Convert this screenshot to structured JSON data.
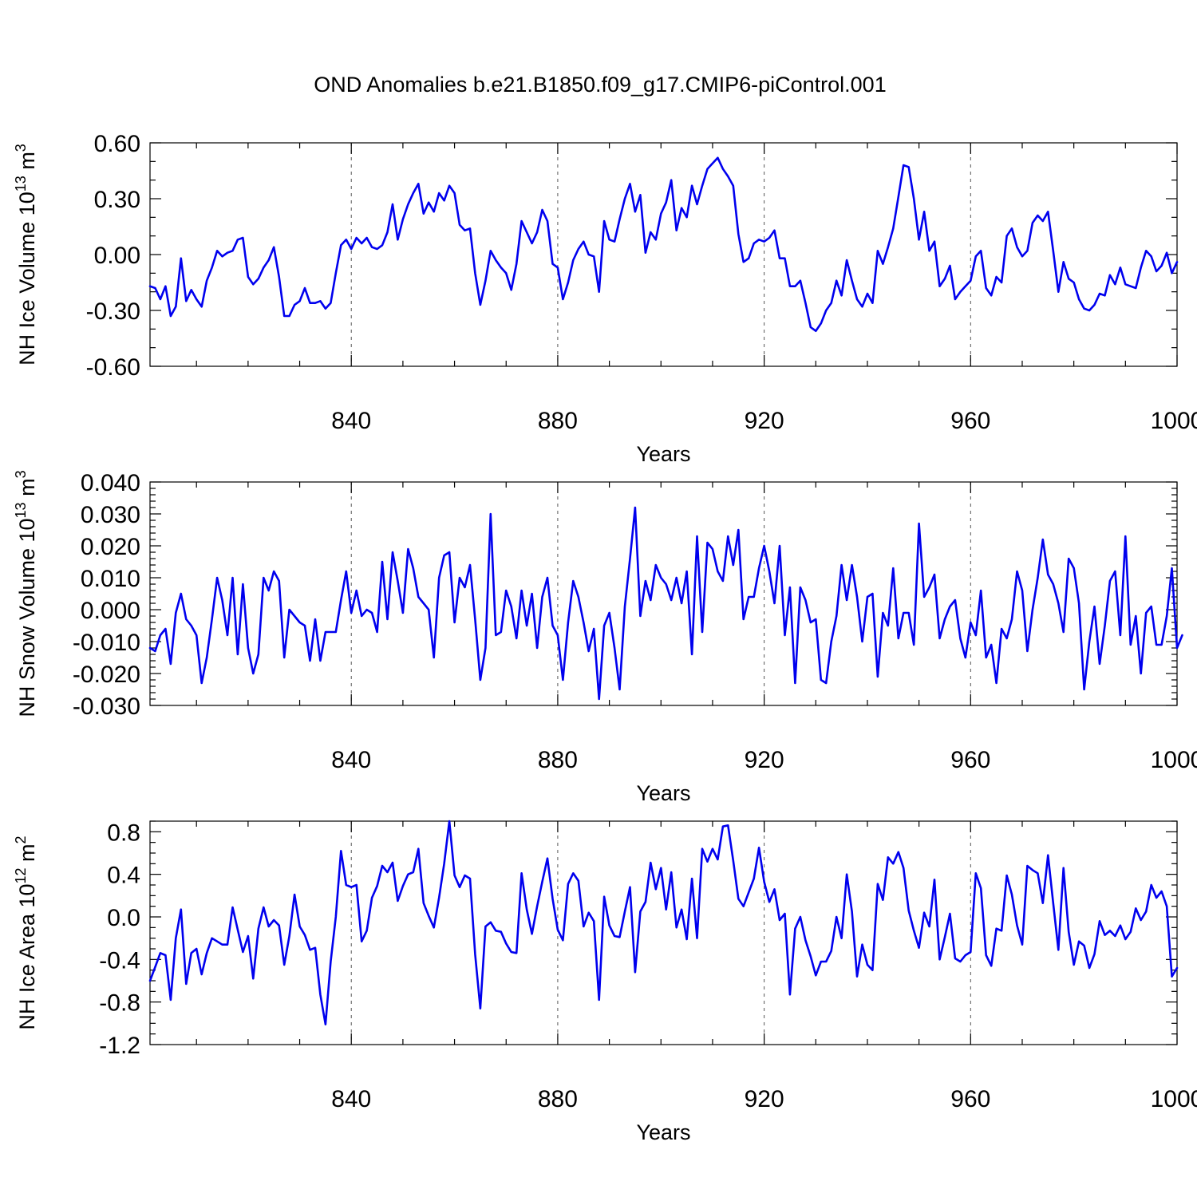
{
  "title": "OND Anomalies b.e21.B1850.f09_g17.CMIP6-piControl.001",
  "colors": {
    "line": "#0000ee",
    "axis": "#000000",
    "refline": "#555555"
  },
  "chart_data": [
    {
      "type": "line",
      "ylabel": "NH Ice Volume 10",
      "ylabel_exp": "13",
      "ylabel_unit": " m",
      "ylabel_unit_exp": "3",
      "xlabel": "Years",
      "xlim": [
        801,
        1000
      ],
      "ylim": [
        -0.6,
        0.6
      ],
      "yticks": [
        "0.60",
        "0.30",
        "0.00",
        "-0.30",
        "-0.60"
      ],
      "ytick_values": [
        0.6,
        0.3,
        0.0,
        -0.3,
        -0.6
      ],
      "xticks": [
        "840",
        "880",
        "920",
        "960",
        "1000"
      ],
      "xtick_values": [
        840,
        880,
        920,
        960,
        1000
      ],
      "x_start": 801,
      "values": [
        -0.17,
        -0.18,
        -0.24,
        -0.17,
        -0.33,
        -0.28,
        -0.02,
        -0.25,
        -0.19,
        -0.24,
        -0.28,
        -0.14,
        -0.07,
        0.02,
        -0.01,
        0.01,
        0.02,
        0.08,
        0.09,
        -0.12,
        -0.16,
        -0.13,
        -0.07,
        -0.03,
        0.04,
        -0.12,
        -0.33,
        -0.33,
        -0.27,
        -0.25,
        -0.18,
        -0.26,
        -0.26,
        -0.25,
        -0.29,
        -0.26,
        -0.1,
        0.05,
        0.08,
        0.03,
        0.09,
        0.06,
        0.09,
        0.04,
        0.03,
        0.05,
        0.12,
        0.27,
        0.08,
        0.19,
        0.27,
        0.33,
        0.38,
        0.22,
        0.28,
        0.23,
        0.33,
        0.29,
        0.37,
        0.33,
        0.16,
        0.13,
        0.14,
        -0.1,
        -0.27,
        -0.14,
        0.02,
        -0.03,
        -0.07,
        -0.1,
        -0.19,
        -0.05,
        0.18,
        0.12,
        0.06,
        0.12,
        0.24,
        0.18,
        -0.05,
        -0.07,
        -0.24,
        -0.15,
        -0.03,
        0.03,
        0.07,
        0.0,
        -0.01,
        -0.2,
        0.18,
        0.08,
        0.07,
        0.19,
        0.3,
        0.38,
        0.23,
        0.32,
        0.01,
        0.12,
        0.08,
        0.22,
        0.28,
        0.4,
        0.13,
        0.25,
        0.2,
        0.37,
        0.27,
        0.37,
        0.46,
        0.49,
        0.52,
        0.46,
        0.42,
        0.37,
        0.11,
        -0.04,
        -0.02,
        0.06,
        0.08,
        0.07,
        0.09,
        0.13,
        -0.02,
        -0.02,
        -0.17,
        -0.17,
        -0.14,
        -0.26,
        -0.39,
        -0.41,
        -0.37,
        -0.3,
        -0.26,
        -0.14,
        -0.22,
        -0.03,
        -0.14,
        -0.24,
        -0.28,
        -0.21,
        -0.26,
        0.02,
        -0.05,
        0.04,
        0.14,
        0.31,
        0.48,
        0.47,
        0.3,
        0.08,
        0.23,
        0.02,
        0.07,
        -0.17,
        -0.13,
        -0.06,
        -0.24,
        -0.2,
        -0.17,
        -0.14,
        -0.01,
        0.02,
        -0.18,
        -0.22,
        -0.12,
        -0.15,
        0.1,
        0.14,
        0.04,
        -0.01,
        0.02,
        0.17,
        0.21,
        0.18,
        0.23,
        0.02,
        -0.2,
        -0.04,
        -0.13,
        -0.15,
        -0.24,
        -0.29,
        -0.3,
        -0.27,
        -0.21,
        -0.22,
        -0.11,
        -0.16,
        -0.07,
        -0.16,
        -0.17,
        -0.18,
        -0.07,
        0.02,
        -0.01,
        -0.09,
        -0.06,
        0.01,
        -0.1,
        -0.04
      ]
    },
    {
      "type": "line",
      "ylabel": "NH Snow Volume 10",
      "ylabel_exp": "13",
      "ylabel_unit": " m",
      "ylabel_unit_exp": "3",
      "xlabel": "Years",
      "xlim": [
        801,
        1000
      ],
      "ylim": [
        -0.03,
        0.04
      ],
      "yticks": [
        "0.040",
        "0.030",
        "0.020",
        "0.010",
        "0.000",
        "-0.010",
        "-0.020",
        "-0.030"
      ],
      "ytick_values": [
        0.04,
        0.03,
        0.02,
        0.01,
        0.0,
        -0.01,
        -0.02,
        -0.03
      ],
      "xticks": [
        "840",
        "880",
        "920",
        "960",
        "1000"
      ],
      "xtick_values": [
        840,
        880,
        920,
        960,
        1000
      ],
      "x_start": 801,
      "values": [
        -0.012,
        -0.013,
        -0.008,
        -0.006,
        -0.017,
        -0.001,
        0.005,
        -0.003,
        -0.005,
        -0.008,
        -0.023,
        -0.015,
        -0.003,
        0.01,
        0.003,
        -0.008,
        0.01,
        -0.014,
        0.008,
        -0.012,
        -0.02,
        -0.014,
        0.01,
        0.006,
        0.012,
        0.009,
        -0.015,
        0.0,
        -0.002,
        -0.004,
        -0.005,
        -0.016,
        -0.003,
        -0.016,
        -0.007,
        -0.007,
        -0.007,
        0.003,
        0.012,
        -0.001,
        0.006,
        -0.002,
        0.0,
        -0.001,
        -0.007,
        0.015,
        -0.003,
        0.018,
        0.009,
        -0.001,
        0.019,
        0.013,
        0.004,
        0.002,
        0.0,
        -0.015,
        0.01,
        0.017,
        0.018,
        -0.004,
        0.01,
        0.007,
        0.014,
        -0.003,
        -0.022,
        -0.012,
        0.03,
        -0.008,
        -0.007,
        0.006,
        0.001,
        -0.009,
        0.006,
        -0.005,
        0.005,
        -0.012,
        0.004,
        0.01,
        -0.005,
        -0.008,
        -0.022,
        -0.004,
        0.009,
        0.004,
        -0.004,
        -0.013,
        -0.006,
        -0.028,
        -0.005,
        -0.001,
        -0.012,
        -0.025,
        0.001,
        0.016,
        0.032,
        -0.002,
        0.009,
        0.003,
        0.014,
        0.01,
        0.008,
        0.003,
        0.01,
        0.002,
        0.012,
        -0.014,
        0.023,
        -0.007,
        0.021,
        0.019,
        0.012,
        0.009,
        0.023,
        0.014,
        0.025,
        -0.003,
        0.004,
        0.004,
        0.013,
        0.02,
        0.012,
        0.002,
        0.02,
        -0.008,
        0.007,
        -0.023,
        0.007,
        0.003,
        -0.004,
        -0.003,
        -0.022,
        -0.023,
        -0.01,
        -0.002,
        0.014,
        0.003,
        0.014,
        0.004,
        -0.01,
        0.004,
        0.005,
        -0.021,
        -0.001,
        -0.005,
        0.013,
        -0.009,
        -0.001,
        -0.001,
        -0.011,
        0.027,
        0.004,
        0.007,
        0.011,
        -0.009,
        -0.003,
        0.001,
        0.003,
        -0.009,
        -0.015,
        -0.004,
        -0.008,
        0.006,
        -0.015,
        -0.011,
        -0.023,
        -0.006,
        -0.009,
        -0.003,
        0.012,
        0.006,
        -0.013,
        0.0,
        0.01,
        0.022,
        0.011,
        0.008,
        0.002,
        -0.007,
        0.016,
        0.013,
        0.002,
        -0.025,
        -0.01,
        0.001,
        -0.017,
        -0.005,
        0.009,
        0.012,
        -0.008,
        0.023,
        -0.011,
        -0.002,
        -0.02,
        -0.001,
        0.001,
        -0.011,
        -0.011,
        -0.002,
        0.013,
        -0.012,
        -0.008
      ]
    },
    {
      "type": "line",
      "ylabel": "NH Ice Area 10",
      "ylabel_exp": "12",
      "ylabel_unit": " m",
      "ylabel_unit_exp": "2",
      "xlabel": "Years",
      "xlim": [
        801,
        1000
      ],
      "ylim": [
        -1.2,
        0.9
      ],
      "yticks": [
        "0.8",
        "0.4",
        "0.0",
        "-0.4",
        "-0.8",
        "-1.2"
      ],
      "ytick_values": [
        0.8,
        0.4,
        0.0,
        -0.4,
        -0.8,
        -1.2
      ],
      "xticks": [
        "840",
        "880",
        "920",
        "960",
        "1000"
      ],
      "xtick_values": [
        840,
        880,
        920,
        960,
        1000
      ],
      "x_start": 801,
      "values": [
        -0.6,
        -0.47,
        -0.34,
        -0.36,
        -0.78,
        -0.2,
        0.07,
        -0.63,
        -0.34,
        -0.3,
        -0.54,
        -0.34,
        -0.2,
        -0.23,
        -0.26,
        -0.26,
        0.09,
        -0.12,
        -0.33,
        -0.18,
        -0.58,
        -0.11,
        0.09,
        -0.09,
        -0.03,
        -0.08,
        -0.45,
        -0.18,
        0.21,
        -0.09,
        -0.17,
        -0.31,
        -0.29,
        -0.73,
        -1.01,
        -0.42,
        0.0,
        0.62,
        0.3,
        0.28,
        0.3,
        -0.23,
        -0.13,
        0.18,
        0.29,
        0.48,
        0.42,
        0.51,
        0.15,
        0.29,
        0.4,
        0.42,
        0.64,
        0.13,
        0.01,
        -0.1,
        0.18,
        0.5,
        0.9,
        0.39,
        0.28,
        0.39,
        0.36,
        -0.35,
        -0.86,
        -0.09,
        -0.05,
        -0.13,
        -0.14,
        -0.25,
        -0.33,
        -0.34,
        0.41,
        0.07,
        -0.16,
        0.1,
        0.33,
        0.55,
        0.17,
        -0.12,
        -0.22,
        0.31,
        0.41,
        0.34,
        -0.09,
        0.04,
        -0.04,
        -0.78,
        0.19,
        -0.08,
        -0.18,
        -0.19,
        0.05,
        0.28,
        -0.52,
        0.05,
        0.14,
        0.51,
        0.26,
        0.46,
        0.07,
        0.42,
        -0.1,
        0.07,
        -0.21,
        0.36,
        -0.2,
        0.64,
        0.52,
        0.64,
        0.54,
        0.85,
        0.86,
        0.53,
        0.17,
        0.1,
        0.23,
        0.36,
        0.65,
        0.33,
        0.14,
        0.26,
        -0.03,
        0.03,
        -0.73,
        -0.11,
        0.0,
        -0.22,
        -0.37,
        -0.55,
        -0.42,
        -0.42,
        -0.32,
        0.0,
        -0.2,
        0.4,
        0.05,
        -0.56,
        -0.26,
        -0.45,
        -0.5,
        0.31,
        0.16,
        0.56,
        0.5,
        0.61,
        0.46,
        0.06,
        -0.13,
        -0.29,
        0.04,
        -0.09,
        0.35,
        -0.4,
        -0.19,
        0.03,
        -0.39,
        -0.42,
        -0.36,
        -0.33,
        0.41,
        0.27,
        -0.36,
        -0.46,
        -0.11,
        -0.13,
        0.39,
        0.21,
        -0.08,
        -0.26,
        0.48,
        0.44,
        0.41,
        0.13,
        0.58,
        0.13,
        -0.31,
        0.46,
        -0.14,
        -0.45,
        -0.23,
        -0.27,
        -0.48,
        -0.35,
        -0.04,
        -0.17,
        -0.13,
        -0.18,
        -0.08,
        -0.21,
        -0.14,
        0.08,
        -0.03,
        0.05,
        0.3,
        0.18,
        0.24,
        0.1,
        -0.56,
        -0.48
      ]
    }
  ]
}
